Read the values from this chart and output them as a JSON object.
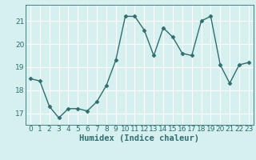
{
  "x": [
    0,
    1,
    2,
    3,
    4,
    5,
    6,
    7,
    8,
    9,
    10,
    11,
    12,
    13,
    14,
    15,
    16,
    17,
    18,
    19,
    20,
    21,
    22,
    23
  ],
  "y": [
    18.5,
    18.4,
    17.3,
    16.8,
    17.2,
    17.2,
    17.1,
    17.5,
    18.2,
    19.3,
    21.2,
    21.2,
    20.6,
    19.5,
    20.7,
    20.3,
    19.6,
    19.5,
    21.0,
    21.2,
    19.1,
    18.3,
    19.1,
    19.2
  ],
  "line_color": "#2E6E6E",
  "marker": "D",
  "marker_size": 2.5,
  "bg_color": "#D6F0F0",
  "grid_color": "#FFFFFF",
  "grid_color_minor": "#E8F8F8",
  "xlabel": "Humidex (Indice chaleur)",
  "ylim": [
    16.5,
    21.7
  ],
  "xlim": [
    -0.5,
    23.5
  ],
  "yticks": [
    17,
    18,
    19,
    20,
    21
  ],
  "xticks": [
    0,
    1,
    2,
    3,
    4,
    5,
    6,
    7,
    8,
    9,
    10,
    11,
    12,
    13,
    14,
    15,
    16,
    17,
    18,
    19,
    20,
    21,
    22,
    23
  ],
  "tick_fontsize": 6.5,
  "xlabel_fontsize": 7.5,
  "label_color": "#2E6E6E",
  "line_width": 1.0
}
